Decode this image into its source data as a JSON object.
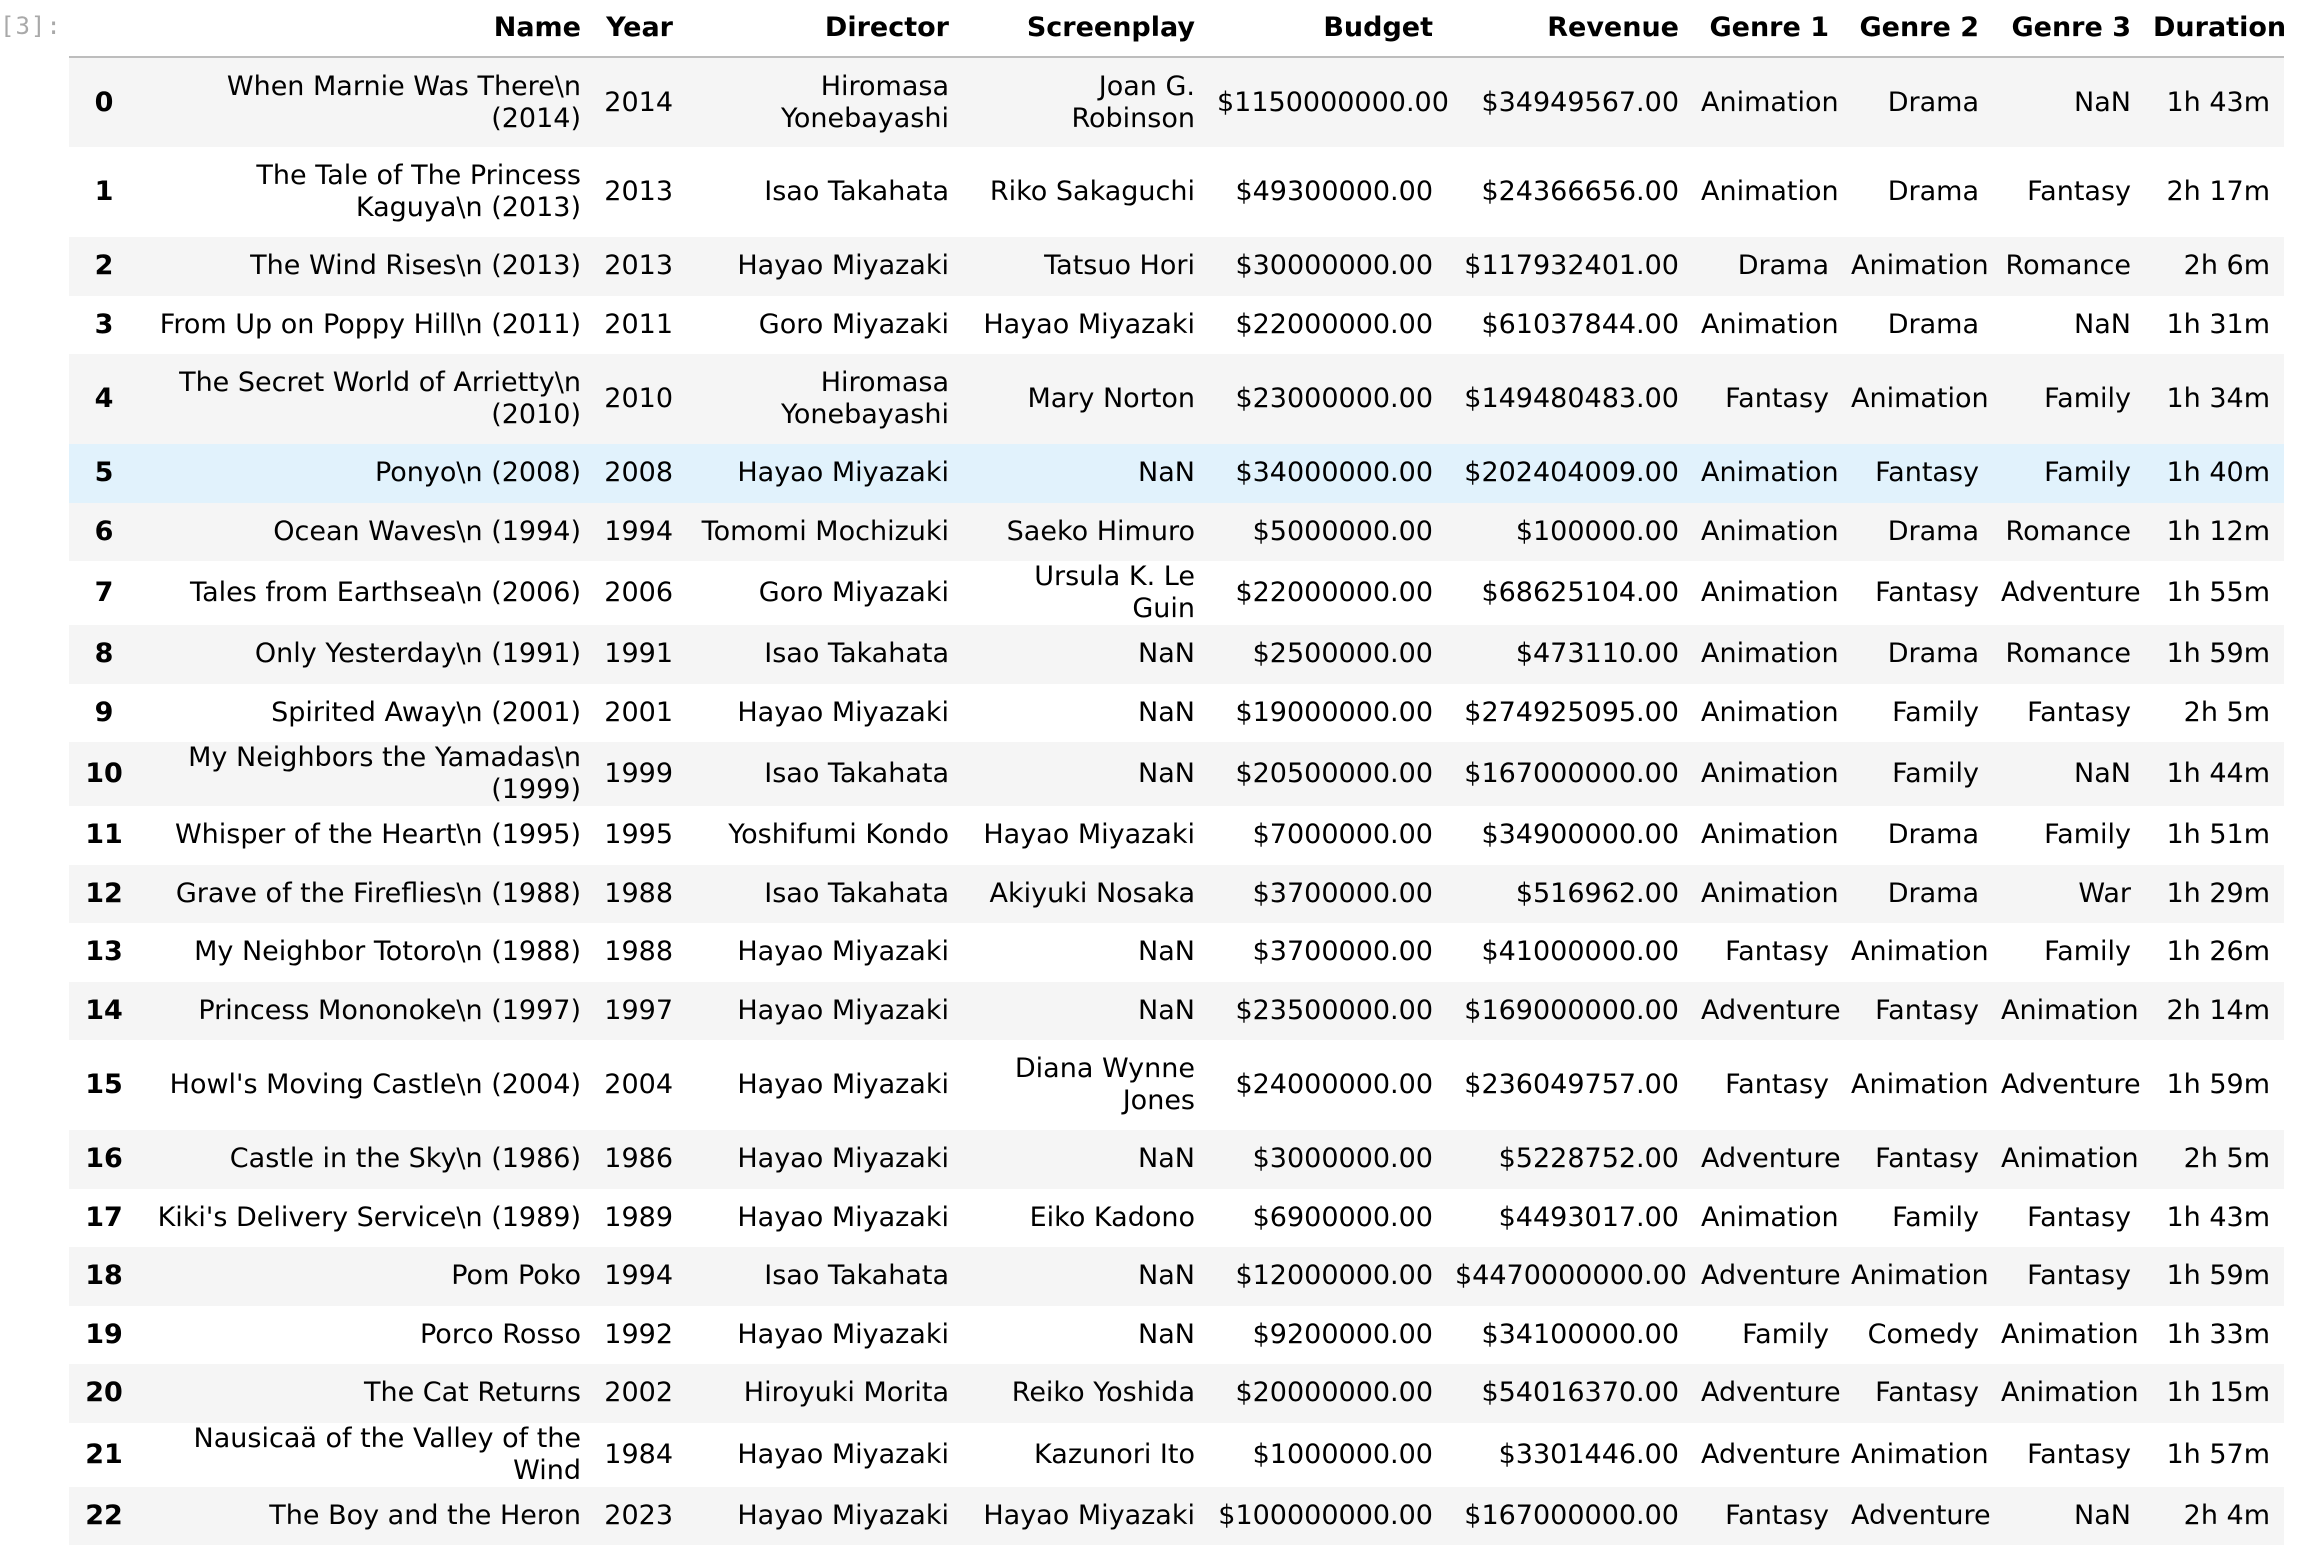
{
  "cell": {
    "prompt": "[3]:"
  },
  "columns": [
    "",
    "Name",
    "Year",
    "Director",
    "Screenplay",
    "Budget",
    "Revenue",
    "Genre 1",
    "Genre 2",
    "Genre 3",
    "Duration"
  ],
  "rows": [
    {
      "index": "0",
      "name": "When Marnie Was There\\n (2014)",
      "year": "2014",
      "director": "Hiromasa Yonebayashi",
      "screenplay": "Joan G. Robinson",
      "budget": "$1150000000.00",
      "revenue": "$34949567.00",
      "genre1": "Animation",
      "genre2": "Drama",
      "genre3": "NaN",
      "duration": "1h 43m"
    },
    {
      "index": "1",
      "name": "The Tale of The Princess Kaguya\\n (2013)",
      "year": "2013",
      "director": "Isao Takahata",
      "screenplay": "Riko Sakaguchi",
      "budget": "$49300000.00",
      "revenue": "$24366656.00",
      "genre1": "Animation",
      "genre2": "Drama",
      "genre3": "Fantasy",
      "duration": "2h 17m"
    },
    {
      "index": "2",
      "name": "The Wind Rises\\n (2013)",
      "year": "2013",
      "director": "Hayao Miyazaki",
      "screenplay": "Tatsuo Hori",
      "budget": "$30000000.00",
      "revenue": "$117932401.00",
      "genre1": "Drama",
      "genre2": "Animation",
      "genre3": "Romance",
      "duration": "2h 6m"
    },
    {
      "index": "3",
      "name": "From Up on Poppy Hill\\n (2011)",
      "year": "2011",
      "director": "Goro Miyazaki",
      "screenplay": "Hayao Miyazaki",
      "budget": "$22000000.00",
      "revenue": "$61037844.00",
      "genre1": "Animation",
      "genre2": "Drama",
      "genre3": "NaN",
      "duration": "1h 31m"
    },
    {
      "index": "4",
      "name": "The Secret World of Arrietty\\n (2010)",
      "year": "2010",
      "director": "Hiromasa Yonebayashi",
      "screenplay": "Mary Norton",
      "budget": "$23000000.00",
      "revenue": "$149480483.00",
      "genre1": "Fantasy",
      "genre2": "Animation",
      "genre3": "Family",
      "duration": "1h 34m"
    },
    {
      "index": "5",
      "name": "Ponyo\\n (2008)",
      "year": "2008",
      "director": "Hayao Miyazaki",
      "screenplay": "NaN",
      "budget": "$34000000.00",
      "revenue": "$202404009.00",
      "genre1": "Animation",
      "genre2": "Fantasy",
      "genre3": "Family",
      "duration": "1h 40m"
    },
    {
      "index": "6",
      "name": "Ocean Waves\\n (1994)",
      "year": "1994",
      "director": "Tomomi Mochizuki",
      "screenplay": "Saeko Himuro",
      "budget": "$5000000.00",
      "revenue": "$100000.00",
      "genre1": "Animation",
      "genre2": "Drama",
      "genre3": "Romance",
      "duration": "1h 12m"
    },
    {
      "index": "7",
      "name": "Tales from Earthsea\\n (2006)",
      "year": "2006",
      "director": "Goro Miyazaki",
      "screenplay": "Ursula K. Le Guin",
      "budget": "$22000000.00",
      "revenue": "$68625104.00",
      "genre1": "Animation",
      "genre2": "Fantasy",
      "genre3": "Adventure",
      "duration": "1h 55m"
    },
    {
      "index": "8",
      "name": "Only Yesterday\\n (1991)",
      "year": "1991",
      "director": "Isao Takahata",
      "screenplay": "NaN",
      "budget": "$2500000.00",
      "revenue": "$473110.00",
      "genre1": "Animation",
      "genre2": "Drama",
      "genre3": "Romance",
      "duration": "1h 59m"
    },
    {
      "index": "9",
      "name": "Spirited Away\\n (2001)",
      "year": "2001",
      "director": "Hayao Miyazaki",
      "screenplay": "NaN",
      "budget": "$19000000.00",
      "revenue": "$274925095.00",
      "genre1": "Animation",
      "genre2": "Family",
      "genre3": "Fantasy",
      "duration": "2h 5m"
    },
    {
      "index": "10",
      "name": "My Neighbors the Yamadas\\n (1999)",
      "year": "1999",
      "director": "Isao Takahata",
      "screenplay": "NaN",
      "budget": "$20500000.00",
      "revenue": "$167000000.00",
      "genre1": "Animation",
      "genre2": "Family",
      "genre3": "NaN",
      "duration": "1h 44m"
    },
    {
      "index": "11",
      "name": "Whisper of the Heart\\n (1995)",
      "year": "1995",
      "director": "Yoshifumi Kondo",
      "screenplay": "Hayao Miyazaki",
      "budget": "$7000000.00",
      "revenue": "$34900000.00",
      "genre1": "Animation",
      "genre2": "Drama",
      "genre3": "Family",
      "duration": "1h 51m"
    },
    {
      "index": "12",
      "name": "Grave of the Fireflies\\n (1988)",
      "year": "1988",
      "director": "Isao Takahata",
      "screenplay": "Akiyuki Nosaka",
      "budget": "$3700000.00",
      "revenue": "$516962.00",
      "genre1": "Animation",
      "genre2": "Drama",
      "genre3": "War",
      "duration": "1h 29m"
    },
    {
      "index": "13",
      "name": "My Neighbor Totoro\\n (1988)",
      "year": "1988",
      "director": "Hayao Miyazaki",
      "screenplay": "NaN",
      "budget": "$3700000.00",
      "revenue": "$41000000.00",
      "genre1": "Fantasy",
      "genre2": "Animation",
      "genre3": "Family",
      "duration": "1h 26m"
    },
    {
      "index": "14",
      "name": "Princess Mononoke\\n (1997)",
      "year": "1997",
      "director": "Hayao Miyazaki",
      "screenplay": "NaN",
      "budget": "$23500000.00",
      "revenue": "$169000000.00",
      "genre1": "Adventure",
      "genre2": "Fantasy",
      "genre3": "Animation",
      "duration": "2h 14m"
    },
    {
      "index": "15",
      "name": "Howl's Moving Castle\\n (2004)",
      "year": "2004",
      "director": "Hayao Miyazaki",
      "screenplay": "Diana Wynne Jones",
      "budget": "$24000000.00",
      "revenue": "$236049757.00",
      "genre1": "Fantasy",
      "genre2": "Animation",
      "genre3": "Adventure",
      "duration": "1h 59m"
    },
    {
      "index": "16",
      "name": "Castle in the Sky\\n (1986)",
      "year": "1986",
      "director": "Hayao Miyazaki",
      "screenplay": "NaN",
      "budget": "$3000000.00",
      "revenue": "$5228752.00",
      "genre1": "Adventure",
      "genre2": "Fantasy",
      "genre3": "Animation",
      "duration": "2h 5m"
    },
    {
      "index": "17",
      "name": "Kiki's Delivery Service\\n (1989)",
      "year": "1989",
      "director": "Hayao Miyazaki",
      "screenplay": "Eiko Kadono",
      "budget": "$6900000.00",
      "revenue": "$4493017.00",
      "genre1": "Animation",
      "genre2": "Family",
      "genre3": "Fantasy",
      "duration": "1h 43m"
    },
    {
      "index": "18",
      "name": "Pom Poko",
      "year": "1994",
      "director": "Isao Takahata",
      "screenplay": "NaN",
      "budget": "$12000000.00",
      "revenue": "$4470000000.00",
      "genre1": "Adventure",
      "genre2": "Animation",
      "genre3": "Fantasy",
      "duration": "1h 59m"
    },
    {
      "index": "19",
      "name": "Porco Rosso",
      "year": "1992",
      "director": "Hayao Miyazaki",
      "screenplay": "NaN",
      "budget": "$9200000.00",
      "revenue": "$34100000.00",
      "genre1": "Family",
      "genre2": "Comedy",
      "genre3": "Animation",
      "duration": "1h 33m"
    },
    {
      "index": "20",
      "name": "The Cat Returns",
      "year": "2002",
      "director": "Hiroyuki Morita",
      "screenplay": "Reiko Yoshida",
      "budget": "$20000000.00",
      "revenue": "$54016370.00",
      "genre1": "Adventure",
      "genre2": "Fantasy",
      "genre3": "Animation",
      "duration": "1h 15m"
    },
    {
      "index": "21",
      "name": "Nausicaä of the Valley of the Wind",
      "year": "1984",
      "director": "Hayao Miyazaki",
      "screenplay": "Kazunori Ito",
      "budget": "$1000000.00",
      "revenue": "$3301446.00",
      "genre1": "Adventure",
      "genre2": "Animation",
      "genre3": "Fantasy",
      "duration": "1h 57m"
    },
    {
      "index": "22",
      "name": "The Boy and the Heron",
      "year": "2023",
      "director": "Hayao Miyazaki",
      "screenplay": "Hayao Miyazaki",
      "budget": "$100000000.00",
      "revenue": "$167000000.00",
      "genre1": "Fantasy",
      "genre2": "Adventure",
      "genre3": "NaN",
      "duration": "2h 4m"
    }
  ],
  "highlighted_row": 5,
  "colors": {
    "row_stripe": "#f5f5f5",
    "row_highlight": "#e1f2fc",
    "header_rule": "#bdbdbd",
    "prompt_text": "#a9a9a9"
  }
}
